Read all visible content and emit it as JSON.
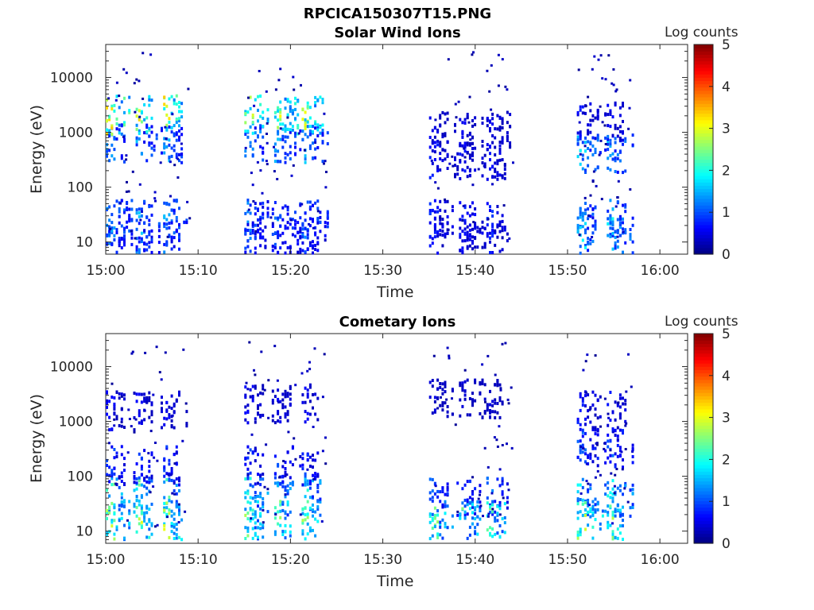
{
  "figure_title": "RPCICA150307T15.PNG",
  "chart_data": [
    {
      "type": "heatmap",
      "title": "Solar Wind Ions",
      "xlabel": "Time",
      "ylabel": "Energy (eV)",
      "x_ticks": [
        "15:00",
        "15:10",
        "15:20",
        "15:30",
        "15:40",
        "15:50",
        "16:00"
      ],
      "x_range": [
        "15:00",
        "16:03"
      ],
      "y_scale": "log",
      "y_ticks": [
        10,
        100,
        1000,
        10000
      ],
      "y_range": [
        6,
        40000
      ],
      "colorbar": {
        "label": "Log counts",
        "min": 0,
        "max": 5,
        "ticks": [
          0,
          1,
          2,
          3,
          4,
          5
        ],
        "colormap": "jet"
      },
      "bursts": [
        {
          "start": "15:00",
          "end": "15:09",
          "bands": [
            {
              "energy": 600,
              "level": 1.2
            },
            {
              "energy": 2000,
              "level": 2.6
            },
            {
              "energy": 25,
              "level": 1.3
            },
            {
              "energy": 10,
              "level": 1.0
            }
          ]
        },
        {
          "start": "15:15",
          "end": "15:24",
          "bands": [
            {
              "energy": 600,
              "level": 1.3
            },
            {
              "energy": 2000,
              "level": 2.4
            },
            {
              "energy": 25,
              "level": 1.1
            },
            {
              "energy": 10,
              "level": 0.8
            }
          ]
        },
        {
          "start": "15:35",
          "end": "15:44",
          "bands": [
            {
              "energy": 300,
              "level": 0.6
            },
            {
              "energy": 1000,
              "level": 0.5
            },
            {
              "energy": 25,
              "level": 0.7
            },
            {
              "energy": 10,
              "level": 0.6
            }
          ]
        },
        {
          "start": "15:51",
          "end": "15:57",
          "bands": [
            {
              "energy": 400,
              "level": 1.4
            },
            {
              "energy": 1500,
              "level": 0.6
            },
            {
              "energy": 25,
              "level": 1.2
            },
            {
              "energy": 12,
              "level": 1.6
            }
          ]
        }
      ]
    },
    {
      "type": "heatmap",
      "title": "Cometary Ions",
      "xlabel": "Time",
      "ylabel": "Energy (eV)",
      "x_ticks": [
        "15:00",
        "15:10",
        "15:20",
        "15:30",
        "15:40",
        "15:50",
        "16:00"
      ],
      "x_range": [
        "15:00",
        "16:03"
      ],
      "y_scale": "log",
      "y_ticks": [
        10,
        100,
        1000,
        10000
      ],
      "y_range": [
        6,
        40000
      ],
      "colorbar": {
        "label": "Log counts",
        "min": 0,
        "max": 5,
        "ticks": [
          0,
          1,
          2,
          3,
          4,
          5
        ],
        "colormap": "jet"
      },
      "bursts": [
        {
          "start": "15:00",
          "end": "15:09",
          "bands": [
            {
              "energy": 40,
              "level": 1.9
            },
            {
              "energy": 15,
              "level": 2.3
            },
            {
              "energy": 150,
              "level": 0.8
            },
            {
              "energy": 1500,
              "level": 0.5
            }
          ]
        },
        {
          "start": "15:15",
          "end": "15:24",
          "bands": [
            {
              "energy": 40,
              "level": 1.7
            },
            {
              "energy": 15,
              "level": 2.1
            },
            {
              "energy": 150,
              "level": 0.8
            },
            {
              "energy": 2000,
              "level": 0.5
            }
          ]
        },
        {
          "start": "15:35",
          "end": "15:44",
          "bands": [
            {
              "energy": 40,
              "level": 1.0
            },
            {
              "energy": 15,
              "level": 2.0
            },
            {
              "energy": 2500,
              "level": 0.4
            }
          ]
        },
        {
          "start": "15:51",
          "end": "15:57",
          "bands": [
            {
              "energy": 40,
              "level": 1.6
            },
            {
              "energy": 15,
              "level": 2.3
            },
            {
              "energy": 300,
              "level": 0.9
            },
            {
              "energy": 1500,
              "level": 0.6
            }
          ]
        }
      ]
    }
  ]
}
